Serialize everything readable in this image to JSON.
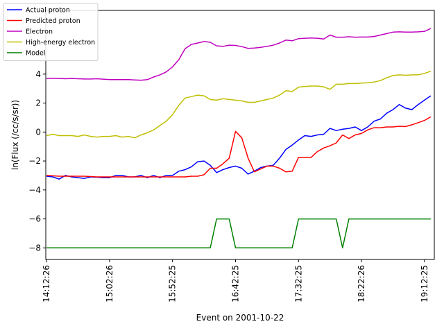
{
  "chart_data": {
    "type": "line",
    "title": "",
    "xlabel": "Event on 2001-10-22",
    "ylabel": "ln(Flux (/cc/s/sr))",
    "x_range_minutes": [
      -0.6,
      307.8
    ],
    "ylim": [
      -8.8,
      8.4
    ],
    "x_ticks": [
      {
        "minute": 0,
        "label": "14:12:26"
      },
      {
        "minute": 50,
        "label": "15:02:26"
      },
      {
        "minute": 100,
        "label": "15:52:25"
      },
      {
        "minute": 150,
        "label": "16:42:25"
      },
      {
        "minute": 200,
        "label": "17:32:25"
      },
      {
        "minute": 250,
        "label": "18:22:26"
      },
      {
        "minute": 300,
        "label": "19:12:25"
      }
    ],
    "y_ticks": [
      -8,
      -6,
      -4,
      -2,
      0,
      2,
      4
    ],
    "grid": false,
    "legend_position": "top-left",
    "series": [
      {
        "name": "Actual proton",
        "color": "#0000ff",
        "points": [
          [
            0,
            -3.05
          ],
          [
            5,
            -3.1
          ],
          [
            10,
            -3.25
          ],
          [
            15,
            -3.0
          ],
          [
            20,
            -3.1
          ],
          [
            25,
            -3.15
          ],
          [
            30,
            -3.2
          ],
          [
            35,
            -3.1
          ],
          [
            40,
            -3.12
          ],
          [
            45,
            -3.15
          ],
          [
            50,
            -3.15
          ],
          [
            55,
            -3.0
          ],
          [
            60,
            -3.0
          ],
          [
            65,
            -3.1
          ],
          [
            70,
            -3.1
          ],
          [
            75,
            -3.0
          ],
          [
            80,
            -3.15
          ],
          [
            85,
            -3.0
          ],
          [
            90,
            -3.15
          ],
          [
            95,
            -3.0
          ],
          [
            100,
            -3.0
          ],
          [
            105,
            -2.7
          ],
          [
            110,
            -2.6
          ],
          [
            115,
            -2.4
          ],
          [
            120,
            -2.05
          ],
          [
            125,
            -2.0
          ],
          [
            130,
            -2.3
          ],
          [
            135,
            -2.8
          ],
          [
            140,
            -2.6
          ],
          [
            145,
            -2.45
          ],
          [
            150,
            -2.35
          ],
          [
            155,
            -2.5
          ],
          [
            160,
            -2.9
          ],
          [
            165,
            -2.7
          ],
          [
            170,
            -2.45
          ],
          [
            175,
            -2.35
          ],
          [
            180,
            -2.3
          ],
          [
            185,
            -1.8
          ],
          [
            190,
            -1.2
          ],
          [
            195,
            -0.9
          ],
          [
            200,
            -0.55
          ],
          [
            205,
            -0.25
          ],
          [
            210,
            -0.3
          ],
          [
            215,
            -0.2
          ],
          [
            220,
            -0.15
          ],
          [
            225,
            0.25
          ],
          [
            230,
            0.1
          ],
          [
            235,
            0.2
          ],
          [
            240,
            0.25
          ],
          [
            245,
            0.35
          ],
          [
            250,
            0.1
          ],
          [
            255,
            0.35
          ],
          [
            260,
            0.75
          ],
          [
            265,
            0.9
          ],
          [
            270,
            1.3
          ],
          [
            275,
            1.55
          ],
          [
            280,
            1.9
          ],
          [
            285,
            1.65
          ],
          [
            290,
            1.55
          ],
          [
            295,
            1.9
          ],
          [
            300,
            2.2
          ],
          [
            305,
            2.5
          ]
        ]
      },
      {
        "name": "Predicted proton",
        "color": "#ff0000",
        "points": [
          [
            0,
            -3.0
          ],
          [
            10,
            -3.05
          ],
          [
            20,
            -3.05
          ],
          [
            30,
            -3.05
          ],
          [
            40,
            -3.1
          ],
          [
            50,
            -3.1
          ],
          [
            60,
            -3.1
          ],
          [
            70,
            -3.1
          ],
          [
            80,
            -3.1
          ],
          [
            90,
            -3.1
          ],
          [
            100,
            -3.1
          ],
          [
            110,
            -3.1
          ],
          [
            115,
            -3.05
          ],
          [
            120,
            -3.05
          ],
          [
            125,
            -2.95
          ],
          [
            130,
            -2.5
          ],
          [
            135,
            -2.5
          ],
          [
            140,
            -2.2
          ],
          [
            145,
            -1.8
          ],
          [
            150,
            0.05
          ],
          [
            155,
            -0.4
          ],
          [
            160,
            -1.8
          ],
          [
            165,
            -2.75
          ],
          [
            170,
            -2.55
          ],
          [
            175,
            -2.35
          ],
          [
            180,
            -2.35
          ],
          [
            185,
            -2.5
          ],
          [
            190,
            -2.75
          ],
          [
            195,
            -2.7
          ],
          [
            200,
            -1.75
          ],
          [
            205,
            -1.75
          ],
          [
            210,
            -1.75
          ],
          [
            215,
            -1.35
          ],
          [
            220,
            -1.1
          ],
          [
            225,
            -0.95
          ],
          [
            230,
            -0.75
          ],
          [
            235,
            -0.2
          ],
          [
            240,
            -0.45
          ],
          [
            245,
            -0.2
          ],
          [
            250,
            -0.1
          ],
          [
            255,
            0.15
          ],
          [
            260,
            0.3
          ],
          [
            265,
            0.3
          ],
          [
            270,
            0.35
          ],
          [
            275,
            0.35
          ],
          [
            280,
            0.4
          ],
          [
            285,
            0.38
          ],
          [
            290,
            0.5
          ],
          [
            295,
            0.65
          ],
          [
            300,
            0.8
          ],
          [
            305,
            1.05
          ]
        ]
      },
      {
        "name": "Electron",
        "color": "#bf00bf",
        "points": [
          [
            0,
            3.7
          ],
          [
            5,
            3.72
          ],
          [
            10,
            3.7
          ],
          [
            15,
            3.68
          ],
          [
            20,
            3.7
          ],
          [
            25,
            3.68
          ],
          [
            30,
            3.66
          ],
          [
            35,
            3.66
          ],
          [
            40,
            3.68
          ],
          [
            45,
            3.65
          ],
          [
            50,
            3.62
          ],
          [
            55,
            3.62
          ],
          [
            60,
            3.62
          ],
          [
            65,
            3.62
          ],
          [
            70,
            3.6
          ],
          [
            75,
            3.58
          ],
          [
            80,
            3.62
          ],
          [
            85,
            3.8
          ],
          [
            90,
            3.95
          ],
          [
            95,
            4.15
          ],
          [
            100,
            4.5
          ],
          [
            105,
            5.0
          ],
          [
            110,
            5.75
          ],
          [
            115,
            6.05
          ],
          [
            120,
            6.15
          ],
          [
            125,
            6.25
          ],
          [
            130,
            6.2
          ],
          [
            135,
            5.95
          ],
          [
            140,
            5.92
          ],
          [
            145,
            6.0
          ],
          [
            150,
            5.98
          ],
          [
            155,
            5.9
          ],
          [
            160,
            5.78
          ],
          [
            165,
            5.8
          ],
          [
            170,
            5.85
          ],
          [
            175,
            5.92
          ],
          [
            180,
            6.0
          ],
          [
            185,
            6.15
          ],
          [
            190,
            6.35
          ],
          [
            195,
            6.3
          ],
          [
            200,
            6.45
          ],
          [
            205,
            6.48
          ],
          [
            210,
            6.5
          ],
          [
            215,
            6.48
          ],
          [
            220,
            6.42
          ],
          [
            225,
            6.7
          ],
          [
            230,
            6.55
          ],
          [
            235,
            6.55
          ],
          [
            240,
            6.58
          ],
          [
            245,
            6.55
          ],
          [
            250,
            6.56
          ],
          [
            255,
            6.56
          ],
          [
            260,
            6.6
          ],
          [
            265,
            6.7
          ],
          [
            270,
            6.8
          ],
          [
            275,
            6.9
          ],
          [
            280,
            6.92
          ],
          [
            285,
            6.9
          ],
          [
            290,
            6.9
          ],
          [
            295,
            6.92
          ],
          [
            300,
            6.95
          ],
          [
            305,
            7.15
          ]
        ]
      },
      {
        "name": "High-energy electron",
        "color": "#bfbf00",
        "points": [
          [
            0,
            -0.25
          ],
          [
            5,
            -0.15
          ],
          [
            10,
            -0.25
          ],
          [
            15,
            -0.25
          ],
          [
            20,
            -0.25
          ],
          [
            25,
            -0.3
          ],
          [
            30,
            -0.2
          ],
          [
            35,
            -0.3
          ],
          [
            40,
            -0.35
          ],
          [
            45,
            -0.3
          ],
          [
            50,
            -0.3
          ],
          [
            55,
            -0.25
          ],
          [
            60,
            -0.35
          ],
          [
            65,
            -0.3
          ],
          [
            70,
            -0.4
          ],
          [
            75,
            -0.2
          ],
          [
            80,
            -0.05
          ],
          [
            85,
            0.15
          ],
          [
            90,
            0.45
          ],
          [
            95,
            0.75
          ],
          [
            100,
            1.2
          ],
          [
            105,
            1.85
          ],
          [
            110,
            2.35
          ],
          [
            115,
            2.45
          ],
          [
            120,
            2.55
          ],
          [
            125,
            2.5
          ],
          [
            130,
            2.25
          ],
          [
            135,
            2.2
          ],
          [
            140,
            2.3
          ],
          [
            145,
            2.25
          ],
          [
            150,
            2.2
          ],
          [
            155,
            2.15
          ],
          [
            160,
            2.05
          ],
          [
            165,
            2.05
          ],
          [
            170,
            2.15
          ],
          [
            175,
            2.25
          ],
          [
            180,
            2.35
          ],
          [
            185,
            2.55
          ],
          [
            190,
            2.85
          ],
          [
            195,
            2.8
          ],
          [
            200,
            3.1
          ],
          [
            205,
            3.15
          ],
          [
            210,
            3.18
          ],
          [
            215,
            3.18
          ],
          [
            220,
            3.12
          ],
          [
            225,
            2.95
          ],
          [
            230,
            3.3
          ],
          [
            235,
            3.3
          ],
          [
            240,
            3.35
          ],
          [
            245,
            3.35
          ],
          [
            250,
            3.38
          ],
          [
            255,
            3.4
          ],
          [
            260,
            3.45
          ],
          [
            265,
            3.55
          ],
          [
            270,
            3.75
          ],
          [
            275,
            3.9
          ],
          [
            280,
            3.95
          ],
          [
            285,
            3.92
          ],
          [
            290,
            3.95
          ],
          [
            295,
            3.95
          ],
          [
            300,
            4.05
          ],
          [
            305,
            4.2
          ]
        ]
      },
      {
        "name": "Model",
        "color": "#008000",
        "points": [
          [
            0,
            -8
          ],
          [
            130,
            -8
          ],
          [
            135,
            -6
          ],
          [
            145,
            -6
          ],
          [
            150,
            -8
          ],
          [
            195,
            -8
          ],
          [
            200,
            -6
          ],
          [
            230,
            -6
          ],
          [
            235,
            -8
          ],
          [
            240,
            -6
          ],
          [
            305,
            -6
          ]
        ]
      }
    ]
  }
}
